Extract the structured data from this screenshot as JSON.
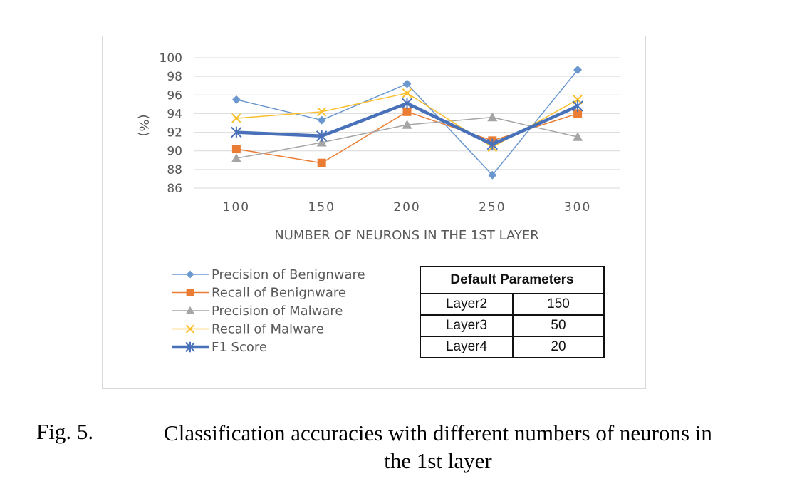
{
  "chart_data": {
    "type": "line",
    "title": "",
    "xlabel": "NUMBER OF NEURONS IN THE 1ST LAYER",
    "ylabel": "(%)",
    "ylim": [
      86,
      100
    ],
    "yticks": [
      86,
      88,
      90,
      92,
      94,
      96,
      98,
      100
    ],
    "categories": [
      "100",
      "150",
      "200",
      "250",
      "300"
    ],
    "grid": "horizontal",
    "legend_position": "bottom-left",
    "series": [
      {
        "name": "Precision of Benignware",
        "values": [
          95.5,
          93.3,
          97.2,
          87.4,
          98.7
        ],
        "color": "#6b97cf",
        "marker": "diamond",
        "width": 1.5
      },
      {
        "name": "Recall of Benignware",
        "values": [
          90.2,
          88.7,
          94.2,
          91.1,
          94.0
        ],
        "color": "#ea7d33",
        "marker": "square",
        "width": 1.5
      },
      {
        "name": "Precision of Malware",
        "values": [
          89.2,
          90.9,
          92.8,
          93.6,
          91.5
        ],
        "color": "#a5a5a5",
        "marker": "triangle",
        "width": 1.5
      },
      {
        "name": "Recall of Malware",
        "values": [
          93.5,
          94.2,
          96.2,
          90.4,
          95.5
        ],
        "color": "#fbbf2d",
        "marker": "x",
        "width": 1.5
      },
      {
        "name": "F1 Score",
        "values": [
          92.0,
          91.6,
          95.1,
          90.7,
          94.8
        ],
        "color": "#4871b9",
        "marker": "star",
        "width": 4.5
      }
    ]
  },
  "table": {
    "header": "Default Parameters",
    "rows": [
      {
        "key": "Layer2",
        "value": "150"
      },
      {
        "key": "Layer3",
        "value": "50"
      },
      {
        "key": "Layer4",
        "value": "20"
      }
    ]
  },
  "caption": {
    "number": "Fig. 5.",
    "line1": "Classification accuracies with different numbers of neurons in",
    "line2": "the 1st layer"
  }
}
